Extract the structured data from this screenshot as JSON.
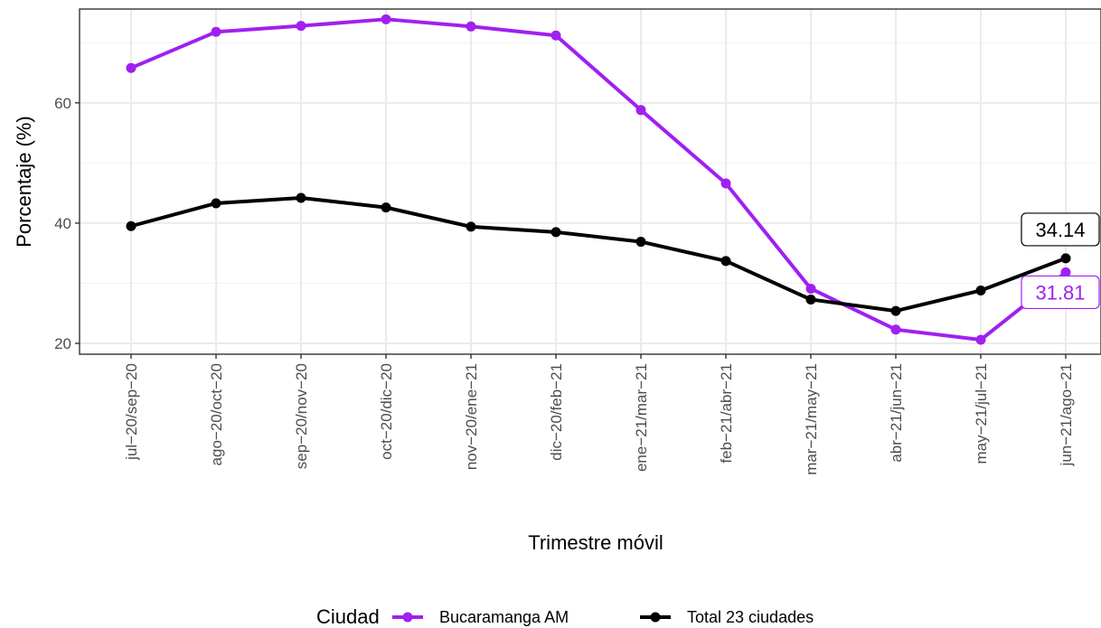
{
  "chart_data": {
    "type": "line",
    "title": "",
    "xlabel": "Trimestre móvil",
    "ylabel": "Porcentaje (%)",
    "categories": [
      "jul−20/sep−20",
      "ago−20/oct−20",
      "sep−20/nov−20",
      "oct−20/dic−20",
      "nov−20/ene−21",
      "dic−20/feb−21",
      "ene−21/mar−21",
      "feb−21/abr−21",
      "mar−21/may−21",
      "abr−21/jun−21",
      "may−21/jul−21",
      "jun−21/ago−21"
    ],
    "yticks": [
      20,
      40,
      60
    ],
    "ylim": [
      18.2,
      75.6
    ],
    "grid": true,
    "legend": {
      "title": "Ciudad",
      "position": "bottom"
    },
    "series": [
      {
        "name": "Bucaramanga AM",
        "color": "#a020f0",
        "values": [
          65.8,
          71.8,
          72.8,
          73.9,
          72.7,
          71.2,
          58.8,
          46.6,
          29.1,
          22.3,
          20.6,
          31.81
        ]
      },
      {
        "name": "Total 23 ciudades",
        "color": "#000000",
        "values": [
          39.5,
          43.3,
          44.2,
          42.6,
          39.4,
          38.5,
          36.9,
          33.7,
          27.3,
          25.4,
          28.8,
          34.14
        ]
      }
    ],
    "annotations": [
      {
        "series": "Total 23 ciudades",
        "label": "34.14",
        "color": "#000000"
      },
      {
        "series": "Bucaramanga AM",
        "label": "31.81",
        "color": "#a020f0"
      }
    ]
  }
}
